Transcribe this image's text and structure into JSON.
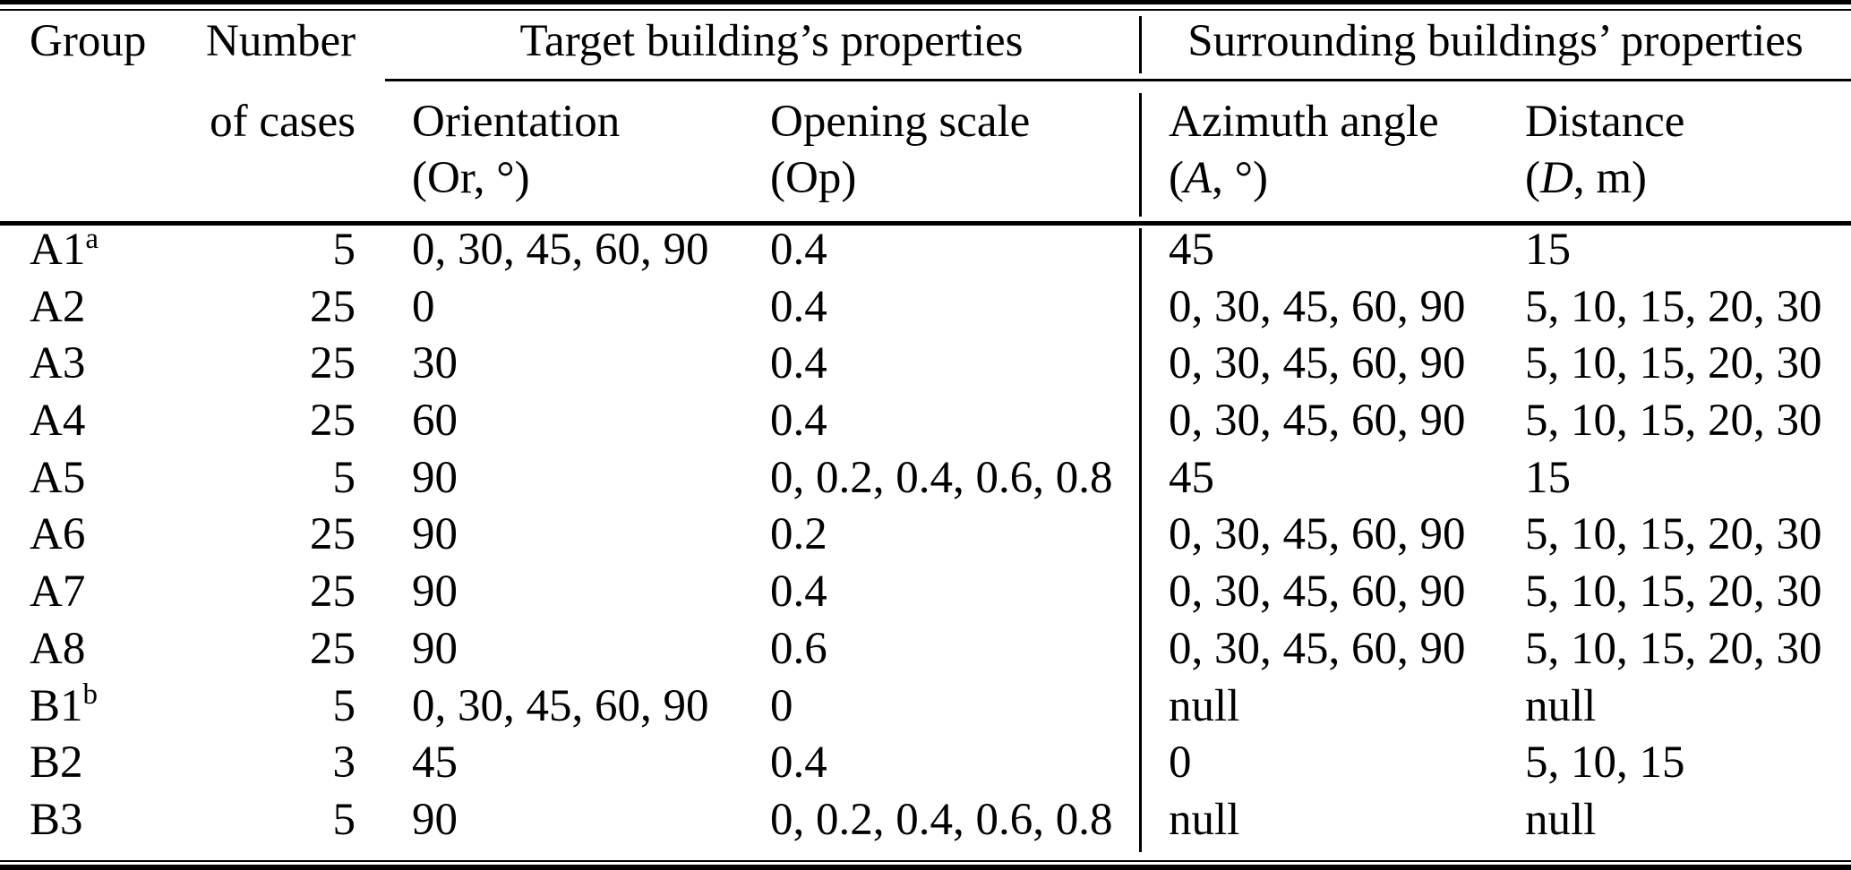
{
  "colors": {
    "text": "#000000",
    "background": "#ffffff",
    "rule": "#000000"
  },
  "table": {
    "headers": {
      "group": "Group",
      "cases_line1": "Number",
      "cases_line2": "of cases",
      "target_group": "Target building’s properties",
      "surrounding_group": "Surrounding buildings’ properties",
      "orientation_name": "Orientation",
      "orientation_unit": "(Or, °)",
      "opening_name": "Opening scale",
      "opening_unit": "(Op)",
      "azimuth_name": "Azimuth angle",
      "azimuth_unit_prefix": "(",
      "azimuth_symbol": "A",
      "azimuth_unit_suffix": ", °)",
      "distance_name": "Distance",
      "distance_unit_prefix": "(",
      "distance_symbol": "D",
      "distance_unit_suffix": ", m)"
    },
    "rows": [
      {
        "group": "A1",
        "sup": "a",
        "cases": "5",
        "orientation": "0, 30, 45, 60, 90",
        "opening": "0.4",
        "azimuth": "45",
        "distance": "15"
      },
      {
        "group": "A2",
        "sup": "",
        "cases": "25",
        "orientation": "0",
        "opening": "0.4",
        "azimuth": "0, 30, 45, 60, 90",
        "distance": "5, 10, 15, 20, 30"
      },
      {
        "group": "A3",
        "sup": "",
        "cases": "25",
        "orientation": "30",
        "opening": "0.4",
        "azimuth": "0, 30, 45, 60, 90",
        "distance": "5, 10, 15, 20, 30"
      },
      {
        "group": "A4",
        "sup": "",
        "cases": "25",
        "orientation": "60",
        "opening": "0.4",
        "azimuth": "0, 30, 45, 60, 90",
        "distance": "5, 10, 15, 20, 30"
      },
      {
        "group": "A5",
        "sup": "",
        "cases": "5",
        "orientation": "90",
        "opening": "0, 0.2, 0.4, 0.6, 0.8",
        "azimuth": "45",
        "distance": "15"
      },
      {
        "group": "A6",
        "sup": "",
        "cases": "25",
        "orientation": "90",
        "opening": "0.2",
        "azimuth": "0, 30, 45, 60, 90",
        "distance": "5, 10, 15, 20, 30"
      },
      {
        "group": "A7",
        "sup": "",
        "cases": "25",
        "orientation": "90",
        "opening": "0.4",
        "azimuth": "0, 30, 45, 60, 90",
        "distance": "5, 10, 15, 20, 30"
      },
      {
        "group": "A8",
        "sup": "",
        "cases": "25",
        "orientation": "90",
        "opening": "0.6",
        "azimuth": "0, 30, 45, 60, 90",
        "distance": "5, 10, 15, 20, 30"
      },
      {
        "group": "B1",
        "sup": "b",
        "cases": "5",
        "orientation": "0, 30, 45, 60, 90",
        "opening": "0",
        "azimuth": "null",
        "distance": "null"
      },
      {
        "group": "B2",
        "sup": "",
        "cases": "3",
        "orientation": "45",
        "opening": "0.4",
        "azimuth": "0",
        "distance": "5, 10, 15"
      },
      {
        "group": "B3",
        "sup": "",
        "cases": "5",
        "orientation": "90",
        "opening": "0, 0.2, 0.4, 0.6, 0.8",
        "azimuth": "null",
        "distance": "null"
      }
    ]
  }
}
